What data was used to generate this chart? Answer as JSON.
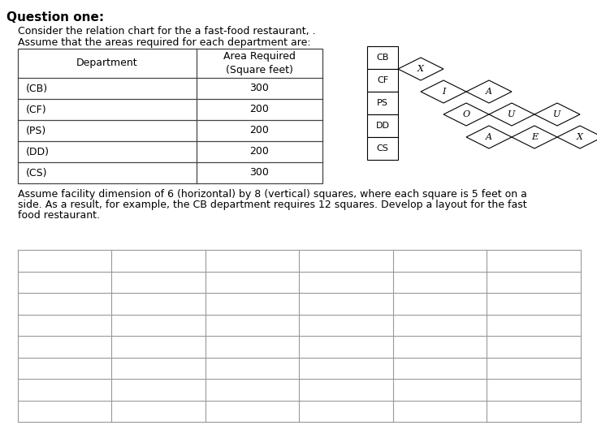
{
  "title": "Question one:",
  "intro_line1": "Consider the relation chart for the a fast-food restaurant, .",
  "intro_line2": "Assume that the areas required for each department are:",
  "table_header_col1": "Department",
  "table_header_col2": "Area Required\n(Square feet)",
  "table_rows": [
    [
      "(CB)",
      "300"
    ],
    [
      "(CF)",
      "200"
    ],
    [
      "(PS)",
      "200"
    ],
    [
      "(DD)",
      "200"
    ],
    [
      "(CS)",
      "300"
    ]
  ],
  "footer_line1": "Assume facility dimension of 6 (horizontal) by 8 (vertical) squares, where each square is 5 feet on a",
  "footer_line2": "side. As a result, for example, the CB department requires 12 squares. Develop a layout for the fast",
  "footer_line3": "food restaurant.",
  "relation_labels": [
    "CB",
    "CF",
    "PS",
    "DD",
    "CS"
  ],
  "relation_matrix": [
    [
      "X"
    ],
    [
      "I",
      "A"
    ],
    [
      "O",
      "U",
      "U"
    ],
    [
      "A",
      "E",
      "X"
    ]
  ],
  "grid_cols": 6,
  "grid_rows": 8,
  "bg_color": "#ffffff",
  "table_border_color": "#444444",
  "grid_line_color": "#999999"
}
